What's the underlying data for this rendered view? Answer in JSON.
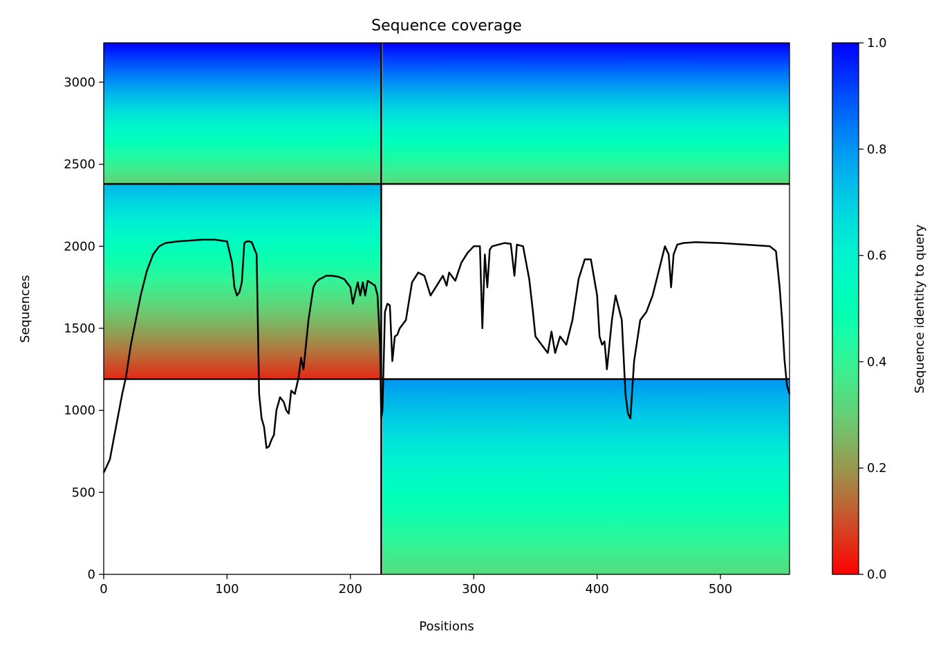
{
  "chart_data": {
    "type": "heatmap",
    "title": "Sequence coverage",
    "xlabel": "Positions",
    "ylabel": "Sequences",
    "xlim": [
      0,
      556
    ],
    "ylim": [
      0,
      3240
    ],
    "x_ticks": [
      0,
      100,
      200,
      300,
      400,
      500
    ],
    "y_ticks": [
      0,
      500,
      1000,
      1500,
      2000,
      2500,
      3000
    ],
    "grid": false,
    "colorbar": {
      "label": "Sequence identity to query",
      "colormap": "rainbow_r",
      "range": [
        0,
        1
      ],
      "ticks": [
        "0.0",
        "0.2",
        "0.4",
        "0.6",
        "0.8",
        "1.0"
      ]
    },
    "blocks": [
      {
        "name": "block-top-left",
        "x": [
          0,
          225
        ],
        "y": [
          2380,
          3240
        ],
        "identity_bottom": 0.3,
        "identity_top": 1.0
      },
      {
        "name": "block-top-right",
        "x": [
          226,
          556
        ],
        "y": [
          2380,
          3240
        ],
        "identity_bottom": 0.32,
        "identity_top": 1.0
      },
      {
        "name": "block-middle-left",
        "x": [
          0,
          225
        ],
        "y": [
          1190,
          2380
        ],
        "identity_bottom": 0.05,
        "identity_top": 0.75
      },
      {
        "name": "block-bottom-right",
        "x": [
          226,
          556
        ],
        "y": [
          0,
          1190
        ],
        "identity_bottom": 0.33,
        "identity_top": 0.8
      }
    ],
    "separators": {
      "vertical_x": [
        225
      ],
      "horizontal_y": [
        2380,
        1190
      ]
    },
    "coverage_line": {
      "color": "#000000",
      "x": [
        0,
        5,
        10,
        15,
        18,
        22,
        26,
        30,
        35,
        40,
        45,
        50,
        60,
        70,
        80,
        90,
        100,
        104,
        106,
        108,
        110,
        112,
        114,
        116,
        118,
        120,
        124,
        126,
        128,
        130,
        132,
        134,
        136,
        138,
        140,
        143,
        146,
        148,
        150,
        152,
        155,
        158,
        160,
        162,
        164,
        166,
        168,
        170,
        172,
        175,
        178,
        180,
        185,
        190,
        195,
        200,
        202,
        204,
        206,
        208,
        210,
        212,
        214,
        216,
        220,
        222,
        224,
        225,
        226,
        228,
        230,
        232,
        234,
        236,
        238,
        240,
        245,
        250,
        255,
        260,
        265,
        270,
        275,
        278,
        280,
        285,
        290,
        295,
        300,
        305,
        307,
        309,
        311,
        313,
        315,
        320,
        325,
        330,
        333,
        335,
        340,
        345,
        348,
        350,
        355,
        360,
        363,
        366,
        370,
        375,
        380,
        385,
        390,
        395,
        400,
        402,
        404,
        406,
        408,
        410,
        412,
        415,
        420,
        423,
        425,
        427,
        430,
        435,
        440,
        445,
        450,
        455,
        458,
        460,
        462,
        465,
        470,
        480,
        500,
        520,
        540,
        545,
        548,
        550,
        552,
        554,
        556
      ],
      "y": [
        620,
        700,
        900,
        1100,
        1200,
        1400,
        1550,
        1700,
        1850,
        1950,
        2000,
        2020,
        2030,
        2035,
        2040,
        2040,
        2030,
        1900,
        1750,
        1700,
        1720,
        1780,
        2020,
        2030,
        2030,
        2025,
        1950,
        1100,
        950,
        900,
        770,
        780,
        820,
        850,
        1000,
        1080,
        1050,
        1000,
        980,
        1120,
        1100,
        1200,
        1320,
        1250,
        1400,
        1550,
        1650,
        1750,
        1780,
        1800,
        1810,
        1820,
        1820,
        1815,
        1800,
        1750,
        1650,
        1720,
        1780,
        1700,
        1780,
        1700,
        1790,
        1780,
        1760,
        1700,
        1400,
        950,
        1000,
        1600,
        1650,
        1640,
        1300,
        1450,
        1460,
        1500,
        1550,
        1780,
        1840,
        1820,
        1700,
        1760,
        1820,
        1760,
        1840,
        1790,
        1900,
        1960,
        2000,
        2000,
        1500,
        1950,
        1750,
        1980,
        2000,
        2010,
        2020,
        2015,
        1820,
        2010,
        2000,
        1800,
        1600,
        1450,
        1400,
        1350,
        1480,
        1350,
        1450,
        1400,
        1550,
        1800,
        1920,
        1920,
        1700,
        1450,
        1400,
        1420,
        1250,
        1400,
        1550,
        1700,
        1550,
        1100,
        980,
        950,
        1300,
        1550,
        1600,
        1700,
        1850,
        2000,
        1950,
        1750,
        1950,
        2010,
        2020,
        2025,
        2020,
        2010,
        2000,
        1970,
        1750,
        1550,
        1300,
        1150,
        1100
      ]
    }
  }
}
